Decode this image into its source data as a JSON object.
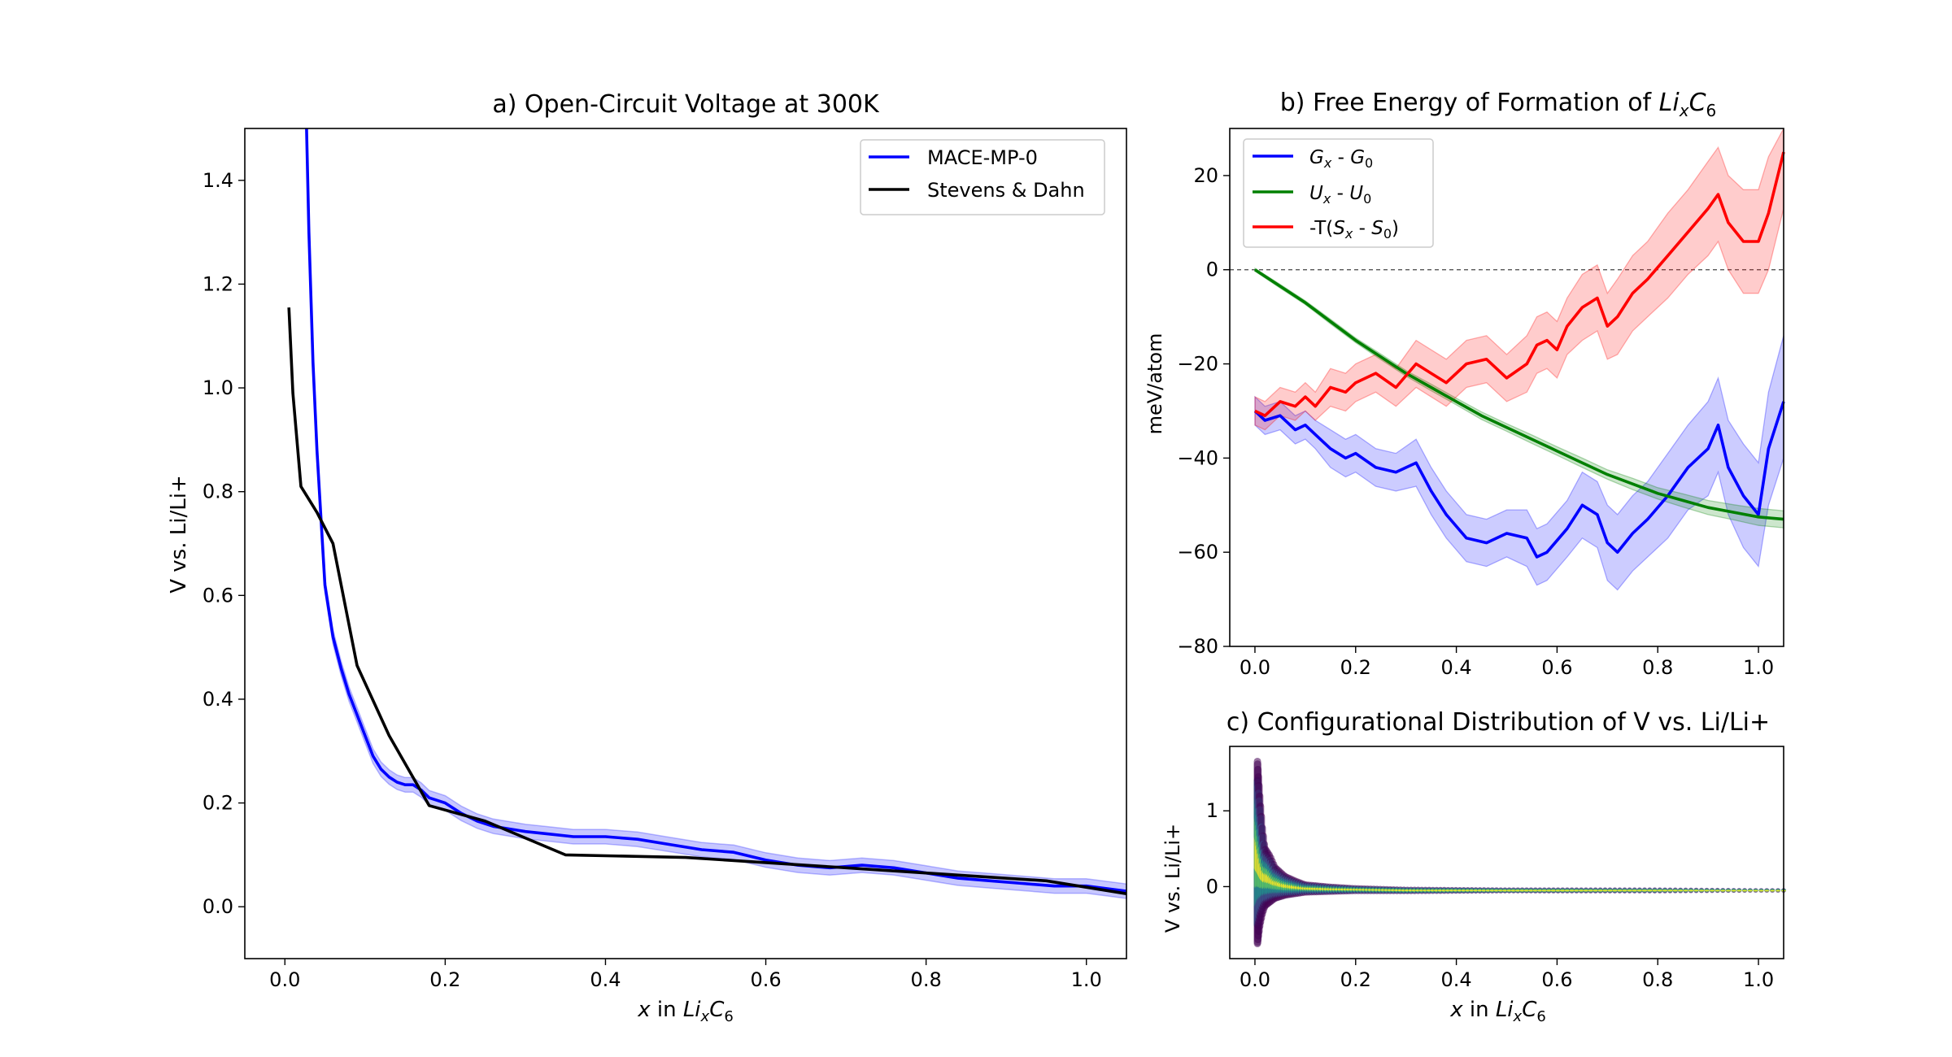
{
  "chart_data": [
    {
      "id": "a",
      "type": "line",
      "title": "a) Open-Circuit Voltage at 300K",
      "xlabel_parts": [
        "x",
        " in ",
        "Li",
        "x",
        "C",
        "6"
      ],
      "ylabel": "V vs. Li/Li+",
      "xlim": [
        -0.05,
        1.05
      ],
      "ylim": [
        -0.1,
        1.5
      ],
      "xticks": [
        0.0,
        0.2,
        0.4,
        0.6,
        0.8,
        1.0
      ],
      "xtick_labels": [
        "0.0",
        "0.2",
        "0.4",
        "0.6",
        "0.8",
        "1.0"
      ],
      "yticks": [
        0.0,
        0.2,
        0.4,
        0.6,
        0.8,
        1.0,
        1.2,
        1.4
      ],
      "ytick_labels": [
        "0.0",
        "0.2",
        "0.4",
        "0.6",
        "0.8",
        "1.0",
        "1.2",
        "1.4"
      ],
      "legend_position": "top-right",
      "series": [
        {
          "name": "MACE-MP-0",
          "color": "#0000ff",
          "x": [
            0.027,
            0.03,
            0.035,
            0.04,
            0.045,
            0.05,
            0.06,
            0.07,
            0.08,
            0.09,
            0.1,
            0.11,
            0.12,
            0.13,
            0.14,
            0.15,
            0.16,
            0.17,
            0.18,
            0.2,
            0.22,
            0.24,
            0.26,
            0.28,
            0.3,
            0.33,
            0.36,
            0.4,
            0.44,
            0.48,
            0.52,
            0.56,
            0.6,
            0.64,
            0.68,
            0.72,
            0.76,
            0.8,
            0.84,
            0.88,
            0.92,
            0.96,
            1.0,
            1.05
          ],
          "y": [
            1.5,
            1.3,
            1.05,
            0.88,
            0.75,
            0.62,
            0.52,
            0.46,
            0.41,
            0.37,
            0.33,
            0.29,
            0.265,
            0.25,
            0.24,
            0.235,
            0.235,
            0.225,
            0.21,
            0.2,
            0.18,
            0.165,
            0.155,
            0.15,
            0.145,
            0.14,
            0.135,
            0.135,
            0.13,
            0.12,
            0.11,
            0.105,
            0.09,
            0.08,
            0.075,
            0.08,
            0.075,
            0.065,
            0.055,
            0.05,
            0.045,
            0.04,
            0.04,
            0.03
          ],
          "band": 0.014
        },
        {
          "name": "Stevens & Dahn",
          "color": "#000000",
          "x": [
            0.005,
            0.01,
            0.02,
            0.04,
            0.06,
            0.09,
            0.13,
            0.18,
            0.25,
            0.35,
            0.5,
            0.7,
            0.85,
            0.95,
            1.05
          ],
          "y": [
            1.155,
            0.99,
            0.81,
            0.76,
            0.7,
            0.465,
            0.33,
            0.195,
            0.165,
            0.1,
            0.095,
            0.075,
            0.06,
            0.05,
            0.025
          ]
        }
      ]
    },
    {
      "id": "b",
      "type": "line",
      "title_parts": [
        "b) Free Energy of Formation of ",
        "Li",
        "x",
        "C",
        "6"
      ],
      "xlabel": "",
      "ylabel": "meV/atom",
      "xlim": [
        -0.05,
        1.05
      ],
      "ylim": [
        -80,
        30
      ],
      "xticks": [
        0.0,
        0.2,
        0.4,
        0.6,
        0.8,
        1.0
      ],
      "xtick_labels": [
        "0.0",
        "0.2",
        "0.4",
        "0.6",
        "0.8",
        "1.0"
      ],
      "yticks": [
        -80,
        -60,
        -40,
        -20,
        0,
        20
      ],
      "ytick_labels": [
        "−80",
        "−60",
        "−40",
        "−20",
        "0",
        "20"
      ],
      "hline": 0,
      "legend_position": "top-left",
      "series": [
        {
          "name_parts": [
            "G",
            "x",
            " - ",
            "G",
            "0"
          ],
          "color": "#0000ff",
          "x": [
            0.0,
            0.02,
            0.05,
            0.08,
            0.1,
            0.12,
            0.15,
            0.18,
            0.2,
            0.24,
            0.28,
            0.32,
            0.35,
            0.38,
            0.42,
            0.46,
            0.5,
            0.54,
            0.56,
            0.58,
            0.62,
            0.65,
            0.68,
            0.7,
            0.72,
            0.75,
            0.78,
            0.82,
            0.86,
            0.9,
            0.92,
            0.94,
            0.97,
            1.0,
            1.02,
            1.05
          ],
          "y": [
            -30,
            -32,
            -31,
            -34,
            -33,
            -35,
            -38,
            -40,
            -39,
            -42,
            -43,
            -41,
            -47,
            -52,
            -57,
            -58,
            -56,
            -57,
            -61,
            -60,
            -55,
            -50,
            -52,
            -58,
            -60,
            -56,
            -53,
            -48,
            -42,
            -38,
            -33,
            -42,
            -48,
            -52,
            -38,
            -28
          ],
          "band_lo": [
            3,
            3,
            3,
            3,
            3,
            3,
            4,
            4,
            4,
            4,
            4,
            5,
            5,
            5,
            5,
            5,
            5,
            6,
            6,
            6,
            6,
            7,
            7,
            8,
            8,
            8,
            8,
            9,
            9,
            10,
            10,
            10,
            11,
            11,
            12,
            12
          ],
          "band_hi": [
            3,
            3,
            3,
            3,
            3,
            3,
            4,
            4,
            4,
            4,
            4,
            5,
            5,
            5,
            5,
            5,
            5,
            6,
            6,
            6,
            6,
            7,
            7,
            8,
            8,
            8,
            8,
            9,
            9,
            10,
            10,
            10,
            11,
            11,
            12,
            14
          ]
        },
        {
          "name_parts": [
            "U",
            "x",
            " - ",
            "U",
            "0"
          ],
          "color": "#008000",
          "x": [
            0.0,
            0.05,
            0.1,
            0.15,
            0.2,
            0.25,
            0.3,
            0.35,
            0.4,
            0.45,
            0.5,
            0.55,
            0.6,
            0.65,
            0.7,
            0.75,
            0.8,
            0.85,
            0.9,
            0.95,
            1.0,
            1.05
          ],
          "y": [
            0,
            -3.5,
            -7,
            -11,
            -15,
            -18.5,
            -22,
            -25,
            -28,
            -31,
            -33.5,
            -36,
            -38.5,
            -41,
            -43.5,
            -45.5,
            -47.5,
            -49,
            -50.5,
            -51.5,
            -52.5,
            -53
          ],
          "band_lo": [
            0.3,
            0.4,
            0.4,
            0.5,
            0.5,
            0.6,
            0.6,
            0.7,
            0.7,
            0.8,
            0.8,
            0.9,
            0.9,
            1.0,
            1.0,
            1.2,
            1.2,
            1.4,
            1.5,
            1.6,
            1.8,
            1.8
          ],
          "band_hi": [
            0.3,
            0.4,
            0.4,
            0.5,
            0.5,
            0.6,
            0.6,
            0.7,
            0.7,
            0.8,
            0.8,
            0.9,
            0.9,
            1.0,
            1.0,
            1.2,
            1.2,
            1.4,
            1.5,
            1.6,
            1.8,
            1.8
          ]
        },
        {
          "name_parts": [
            "-T(",
            "S",
            "x",
            " - ",
            "S",
            "0",
            ")"
          ],
          "color": "#ff0000",
          "x": [
            0.0,
            0.02,
            0.05,
            0.08,
            0.1,
            0.12,
            0.15,
            0.18,
            0.2,
            0.24,
            0.28,
            0.32,
            0.35,
            0.38,
            0.42,
            0.46,
            0.5,
            0.54,
            0.56,
            0.58,
            0.6,
            0.62,
            0.65,
            0.68,
            0.7,
            0.72,
            0.75,
            0.78,
            0.82,
            0.86,
            0.9,
            0.92,
            0.94,
            0.97,
            1.0,
            1.02,
            1.05
          ],
          "y": [
            -30,
            -31,
            -28,
            -29,
            -27,
            -29,
            -25,
            -26,
            -24,
            -22,
            -25,
            -20,
            -22,
            -24,
            -20,
            -19,
            -23,
            -20,
            -16,
            -15,
            -17,
            -12,
            -8,
            -6,
            -12,
            -10,
            -5,
            -2,
            3,
            8,
            13,
            16,
            10,
            6,
            6,
            12,
            25
          ],
          "band_lo": [
            3,
            3,
            3,
            3,
            3,
            3,
            4,
            4,
            4,
            4,
            4,
            5,
            5,
            5,
            5,
            5,
            5,
            6,
            6,
            6,
            6,
            6,
            7,
            7,
            7,
            8,
            8,
            8,
            9,
            9,
            10,
            10,
            10,
            11,
            11,
            12,
            12
          ],
          "band_hi": [
            3,
            3,
            3,
            3,
            3,
            3,
            4,
            4,
            4,
            4,
            4,
            5,
            5,
            5,
            5,
            5,
            5,
            6,
            6,
            6,
            6,
            6,
            7,
            7,
            7,
            8,
            8,
            8,
            9,
            9,
            10,
            10,
            10,
            11,
            11,
            12,
            12
          ]
        }
      ]
    },
    {
      "id": "c",
      "type": "scatter",
      "title": "c) Configurational Distribution of V vs. Li/Li+",
      "xlabel_parts": [
        "x",
        " in ",
        "Li",
        "x",
        "C",
        "6"
      ],
      "ylabel": "V vs. Li/Li+",
      "xlim": [
        -0.05,
        1.05
      ],
      "ylim": [
        -0.95,
        1.85
      ],
      "xticks": [
        0.0,
        0.2,
        0.4,
        0.6,
        0.8,
        1.0
      ],
      "xtick_labels": [
        "0.0",
        "0.2",
        "0.4",
        "0.6",
        "0.8",
        "1.0"
      ],
      "yticks": [
        0,
        1
      ],
      "ytick_labels": [
        "0",
        "1"
      ],
      "colormap": [
        "#440154",
        "#3b528b",
        "#21918c",
        "#5ec962",
        "#fde725"
      ],
      "spread_x": [
        0.005,
        0.01,
        0.015,
        0.02,
        0.03,
        0.04,
        0.06,
        0.08,
        0.1,
        0.15,
        0.2,
        0.3,
        0.5,
        0.8,
        1.0,
        1.05
      ],
      "spread_hi": [
        1.7,
        1.2,
        0.8,
        0.55,
        0.45,
        0.3,
        0.18,
        0.12,
        0.07,
        0.04,
        0.02,
        0.0,
        -0.01,
        -0.01,
        -0.02,
        -0.02
      ],
      "spread_lo": [
        -0.8,
        -0.55,
        -0.4,
        -0.3,
        -0.25,
        -0.2,
        -0.16,
        -0.14,
        -0.12,
        -0.11,
        -0.1,
        -0.1,
        -0.09,
        -0.09,
        -0.08,
        -0.08
      ]
    }
  ]
}
